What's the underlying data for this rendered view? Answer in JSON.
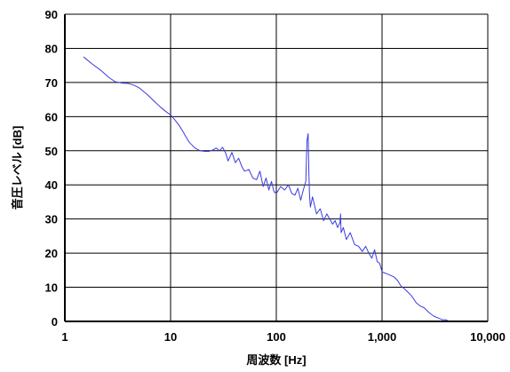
{
  "chart_data": {
    "type": "line",
    "x_scale": "log",
    "xlim": [
      1,
      10000
    ],
    "ylim": [
      0,
      90
    ],
    "grid": true,
    "legend": "none",
    "xlabel": "周波数 [Hz]",
    "ylabel": "音圧レベル [dB]",
    "x_tick_values": [
      1,
      10,
      100,
      1000,
      10000
    ],
    "x_tick_labels": [
      "1",
      "10",
      "100",
      "1,000",
      "10,000"
    ],
    "y_tick_values": [
      0,
      10,
      20,
      30,
      40,
      50,
      60,
      70,
      80,
      90
    ],
    "y_tick_labels": [
      "0",
      "10",
      "20",
      "30",
      "40",
      "50",
      "60",
      "70",
      "80",
      "90"
    ],
    "series": [
      {
        "color": "#3a3ae0",
        "x": [
          1.5,
          1.8,
          2.2,
          2.6,
          3.0,
          3.5,
          4.0,
          4.5,
          5.0,
          6.0,
          7.0,
          8.0,
          9.0,
          10,
          11,
          12,
          13,
          14,
          15,
          17,
          19,
          21,
          23,
          25,
          27,
          29,
          31,
          33,
          35,
          38,
          41,
          44,
          47,
          50,
          55,
          60,
          65,
          70,
          75,
          80,
          85,
          90,
          95,
          100,
          110,
          120,
          130,
          140,
          150,
          160,
          170,
          180,
          190,
          195,
          200,
          203,
          206,
          210,
          220,
          240,
          260,
          280,
          300,
          320,
          340,
          360,
          380,
          400,
          405,
          410,
          430,
          460,
          500,
          550,
          600,
          650,
          700,
          750,
          800,
          850,
          900,
          950,
          1000,
          1100,
          1200,
          1300,
          1400,
          1500,
          1700,
          1900,
          2100,
          2300,
          2500,
          2800,
          3100,
          3400,
          3700,
          4000,
          4300,
          4600
        ],
        "values": [
          77.5,
          75.5,
          73.5,
          71.5,
          70.2,
          69.8,
          69.7,
          69.2,
          68.5,
          66.5,
          64.5,
          62.8,
          61.5,
          60.5,
          59.0,
          57.5,
          55.8,
          54.0,
          52.5,
          50.8,
          50.0,
          49.8,
          49.8,
          50.2,
          50.8,
          50.0,
          51.0,
          49.5,
          47.0,
          49.5,
          46.5,
          47.8,
          45.5,
          44.0,
          44.5,
          42.0,
          41.5,
          44.0,
          39.5,
          42.0,
          38.5,
          41.0,
          38.0,
          37.5,
          39.5,
          38.5,
          40.0,
          37.5,
          37.0,
          39.0,
          35.5,
          38.5,
          41.0,
          53.0,
          55.0,
          44.0,
          37.0,
          33.5,
          36.5,
          31.5,
          33.0,
          29.5,
          31.5,
          30.0,
          28.5,
          29.5,
          27.5,
          29.0,
          31.5,
          26.0,
          27.5,
          24.0,
          26.0,
          22.5,
          22.0,
          20.5,
          22.0,
          20.0,
          18.5,
          21.0,
          17.5,
          17.0,
          14.5,
          14.0,
          13.5,
          13.0,
          12.0,
          10.5,
          9.0,
          7.5,
          5.5,
          4.5,
          4.0,
          2.5,
          1.5,
          1.0,
          0.5,
          0.5,
          0.0,
          0.0
        ]
      }
    ]
  }
}
